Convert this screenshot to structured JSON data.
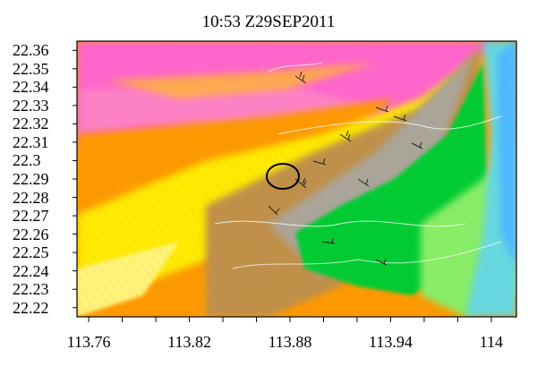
{
  "header": {
    "title": "10:53 Z29SEP2011"
  },
  "map": {
    "lat_ticks": [
      "22.36",
      "22.35",
      "22.34",
      "22.33",
      "22.32",
      "22.31",
      "22.3",
      "22.29",
      "22.28",
      "22.27",
      "22.26",
      "22.25",
      "22.24",
      "22.23",
      "22.22"
    ],
    "lon_ticks": [
      "113.76",
      "113.82",
      "113.88",
      "113.94",
      "114"
    ],
    "lat_range": [
      22.215,
      22.365
    ],
    "lon_range": [
      113.753,
      114.015
    ],
    "colors": {
      "magenta": "#ff66cc",
      "pink": "#ff88c4",
      "orange": "#ff9900",
      "orange_light": "#ffb830",
      "yellow": "#ffea00",
      "yellow_pale": "#fff37a",
      "brown": "#c09048",
      "gray": "#a8a8a8",
      "green": "#00cc33",
      "green_light": "#88ee66",
      "cyan": "#66d8e0",
      "blue": "#4fb8ff"
    }
  }
}
